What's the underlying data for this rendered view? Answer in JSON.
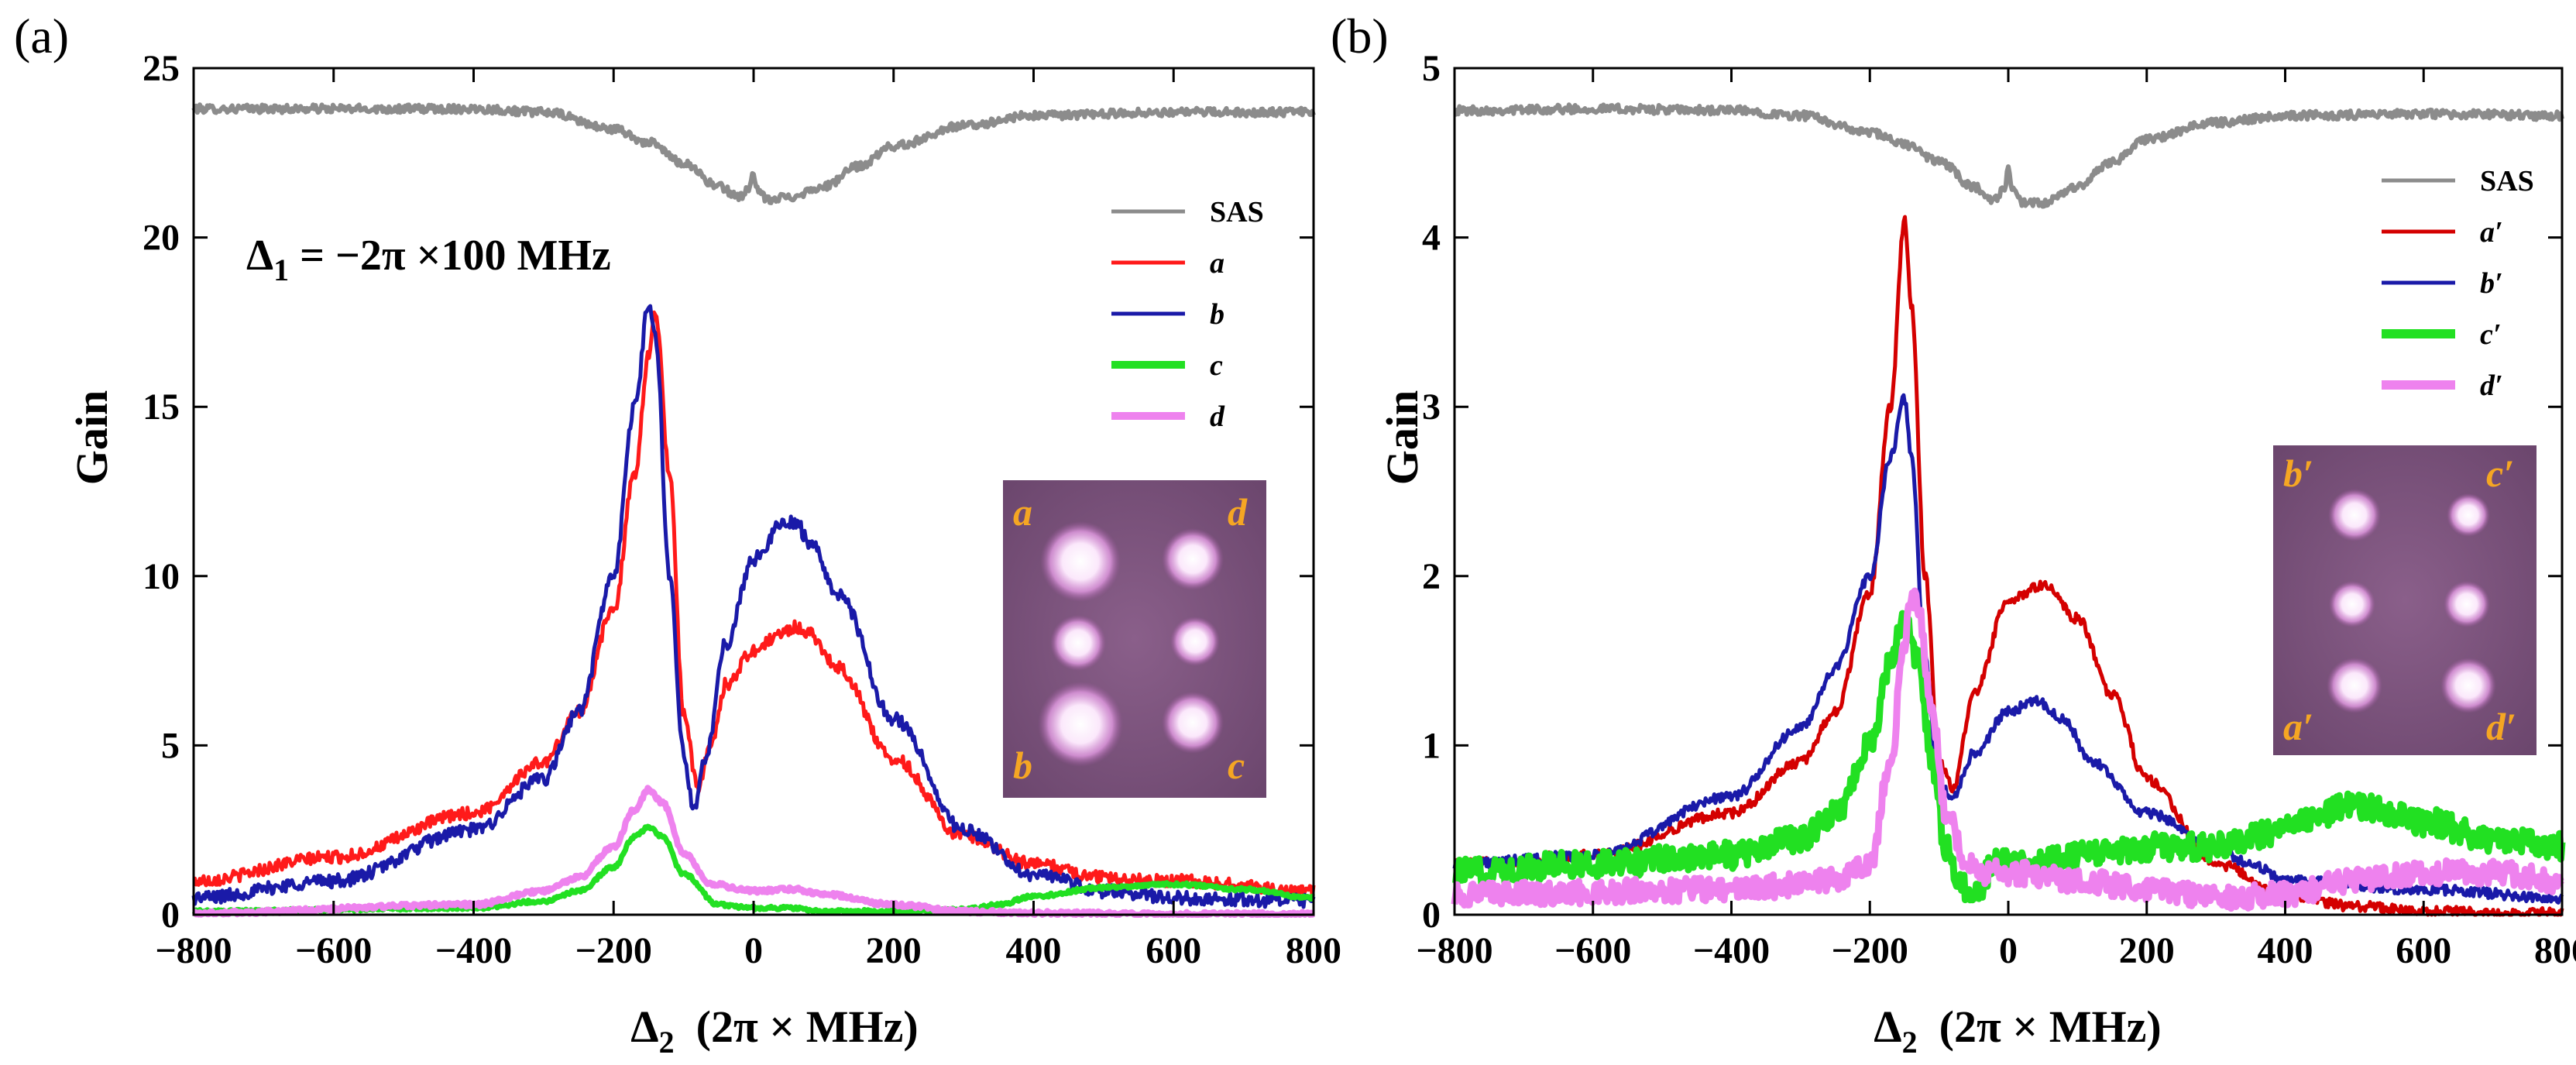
{
  "chart_data": [
    {
      "panel_label": "(a)",
      "type": "line",
      "xlabel_main": "Δ",
      "xlabel_sub": "2",
      "xlabel_unit": "(2π × MHz)",
      "ylabel": "Gain",
      "xlim": [
        -800,
        800
      ],
      "ylim": [
        0,
        25
      ],
      "xticks": [
        -800,
        -600,
        -400,
        -200,
        0,
        200,
        400,
        600,
        800
      ],
      "yticks": [
        0,
        5,
        10,
        15,
        20,
        25
      ],
      "annotation": "Δ1 = −2π ×100 MHz",
      "annotation_parts": {
        "main": "Δ",
        "sub": "1",
        "rest": " = −2π ×100 MHz"
      },
      "legend": [
        "SAS",
        "a",
        "b",
        "c",
        "d"
      ],
      "series": [
        {
          "name": "SAS",
          "color": "#8c8c8c",
          "noise": 0.12,
          "x": [
            -800,
            -600,
            -400,
            -300,
            -200,
            -150,
            -100,
            -50,
            -20,
            -5,
            0,
            5,
            20,
            50,
            100,
            150,
            200,
            300,
            400,
            600,
            800
          ],
          "y": [
            23.8,
            23.8,
            23.8,
            23.7,
            23.2,
            22.8,
            22.2,
            21.5,
            21.2,
            21.5,
            21.9,
            21.4,
            21.1,
            21.2,
            21.5,
            22.1,
            22.7,
            23.3,
            23.6,
            23.7,
            23.7
          ]
        },
        {
          "name": "a",
          "color": "#ff1a1a",
          "noise": 0.18,
          "x": [
            -800,
            -600,
            -400,
            -300,
            -250,
            -200,
            -170,
            -150,
            -140,
            -120,
            -100,
            -80,
            -60,
            -40,
            0,
            40,
            60,
            80,
            120,
            200,
            300,
            400,
            500,
            600,
            800
          ],
          "y": [
            1.0,
            1.7,
            3.0,
            4.5,
            6.0,
            9.0,
            13.0,
            16.5,
            17.8,
            13.0,
            6.0,
            3.8,
            5.0,
            6.8,
            7.8,
            8.3,
            8.5,
            8.3,
            7.3,
            4.6,
            2.3,
            1.5,
            1.1,
            1.0,
            0.7
          ]
        },
        {
          "name": "b",
          "color": "#1a1aa8",
          "noise": 0.2,
          "x": [
            -800,
            -600,
            -400,
            -300,
            -250,
            -200,
            -170,
            -150,
            -140,
            -120,
            -100,
            -85,
            -70,
            -40,
            0,
            40,
            60,
            80,
            120,
            200,
            300,
            400,
            500,
            600,
            800
          ],
          "y": [
            0.5,
            1.0,
            2.5,
            4.0,
            6.0,
            10.0,
            15.0,
            18.0,
            17.0,
            10.0,
            4.8,
            3.0,
            4.5,
            8.0,
            10.5,
            11.5,
            11.6,
            11.0,
            9.5,
            5.8,
            2.5,
            1.2,
            0.7,
            0.5,
            0.4
          ]
        },
        {
          "name": "c",
          "color": "#22e022",
          "noise": 0.05,
          "x": [
            -800,
            -400,
            -300,
            -250,
            -200,
            -170,
            -150,
            -130,
            -100,
            -50,
            0,
            50,
            100,
            200,
            300,
            350,
            400,
            500,
            600,
            700,
            800
          ],
          "y": [
            0.1,
            0.2,
            0.4,
            0.7,
            1.4,
            2.3,
            2.6,
            2.3,
            1.2,
            0.3,
            0.2,
            0.2,
            0.1,
            0.1,
            0.15,
            0.3,
            0.55,
            0.8,
            0.9,
            0.75,
            0.5
          ]
        },
        {
          "name": "d",
          "color": "#ee82ee",
          "noise": 0.06,
          "x": [
            -800,
            -400,
            -300,
            -250,
            -200,
            -170,
            -150,
            -130,
            -100,
            -60,
            0,
            60,
            100,
            200,
            300,
            400,
            600,
            800
          ],
          "y": [
            0.05,
            0.3,
            0.7,
            1.1,
            2.0,
            3.1,
            3.7,
            3.3,
            1.8,
            0.9,
            0.7,
            0.75,
            0.6,
            0.3,
            0.1,
            0.05,
            0.02,
            0.02
          ]
        }
      ],
      "inset": {
        "labels": [
          "a",
          "d",
          "b",
          "c"
        ]
      }
    },
    {
      "panel_label": "(b)",
      "type": "line",
      "xlabel_main": "Δ",
      "xlabel_sub": "2",
      "xlabel_unit": "(2π × MHz)",
      "ylabel": "Gain",
      "xlim": [
        -800,
        800
      ],
      "ylim": [
        0,
        5
      ],
      "xticks": [
        -800,
        -600,
        -400,
        -200,
        0,
        200,
        400,
        600,
        800
      ],
      "yticks": [
        0,
        1,
        2,
        3,
        4,
        5
      ],
      "legend": [
        "SAS",
        "a′",
        "b′",
        "c′",
        "d′"
      ],
      "series": [
        {
          "name": "SAS",
          "color": "#8c8c8c",
          "noise": 0.025,
          "x": [
            -800,
            -600,
            -400,
            -300,
            -200,
            -150,
            -100,
            -50,
            -20,
            -5,
            0,
            5,
            20,
            50,
            100,
            150,
            200,
            300,
            400,
            600,
            800
          ],
          "y": [
            4.75,
            4.76,
            4.75,
            4.72,
            4.62,
            4.55,
            4.45,
            4.3,
            4.22,
            4.3,
            4.4,
            4.3,
            4.2,
            4.2,
            4.3,
            4.45,
            4.58,
            4.68,
            4.72,
            4.73,
            4.72
          ]
        },
        {
          "name": "a′",
          "color": "#d40000",
          "noise": 0.03,
          "x": [
            -800,
            -600,
            -400,
            -300,
            -250,
            -200,
            -170,
            -150,
            -140,
            -120,
            -100,
            -80,
            -50,
            0,
            50,
            100,
            150,
            200,
            300,
            400,
            500,
            600,
            800
          ],
          "y": [
            0.3,
            0.35,
            0.6,
            0.9,
            1.2,
            1.9,
            3.0,
            4.1,
            3.6,
            2.0,
            0.9,
            0.75,
            1.3,
            1.85,
            1.95,
            1.75,
            1.3,
            0.8,
            0.3,
            0.12,
            0.05,
            0.02,
            0.01
          ]
        },
        {
          "name": "b′",
          "color": "#1a1aa8",
          "noise": 0.03,
          "x": [
            -800,
            -600,
            -400,
            -300,
            -250,
            -200,
            -170,
            -150,
            -140,
            -120,
            -100,
            -80,
            -50,
            0,
            40,
            80,
            120,
            200,
            300,
            350,
            400,
            600,
            800
          ],
          "y": [
            0.3,
            0.35,
            0.7,
            1.1,
            1.45,
            2.0,
            2.7,
            3.05,
            2.7,
            1.5,
            0.75,
            0.7,
            0.95,
            1.2,
            1.27,
            1.15,
            0.9,
            0.6,
            0.4,
            0.3,
            0.2,
            0.15,
            0.1
          ]
        },
        {
          "name": "c′",
          "color": "#22e022",
          "noise": 0.08,
          "x": [
            -800,
            -600,
            -400,
            -300,
            -250,
            -200,
            -170,
            -150,
            -130,
            -110,
            -90,
            -70,
            -50,
            -20,
            0,
            100,
            200,
            300,
            400,
            450,
            500,
            600,
            700,
            800
          ],
          "y": [
            0.25,
            0.3,
            0.35,
            0.45,
            0.6,
            1.0,
            1.5,
            1.75,
            1.5,
            0.9,
            0.4,
            0.2,
            0.1,
            0.3,
            0.3,
            0.35,
            0.4,
            0.4,
            0.5,
            0.6,
            0.65,
            0.55,
            0.45,
            0.4
          ]
        },
        {
          "name": "d′",
          "color": "#ee82ee",
          "noise": 0.07,
          "x": [
            -800,
            -400,
            -250,
            -200,
            -170,
            -150,
            -140,
            -130,
            -110,
            -90,
            -60,
            -30,
            0,
            100,
            200,
            300,
            400,
            500,
            600,
            700,
            800
          ],
          "y": [
            0.12,
            0.15,
            0.2,
            0.3,
            0.9,
            1.6,
            1.9,
            1.8,
            1.2,
            0.6,
            0.3,
            0.25,
            0.25,
            0.2,
            0.15,
            0.1,
            0.12,
            0.2,
            0.25,
            0.25,
            0.2
          ]
        }
      ],
      "inset": {
        "labels": [
          "b′",
          "c′",
          "a′",
          "d′"
        ]
      }
    }
  ]
}
